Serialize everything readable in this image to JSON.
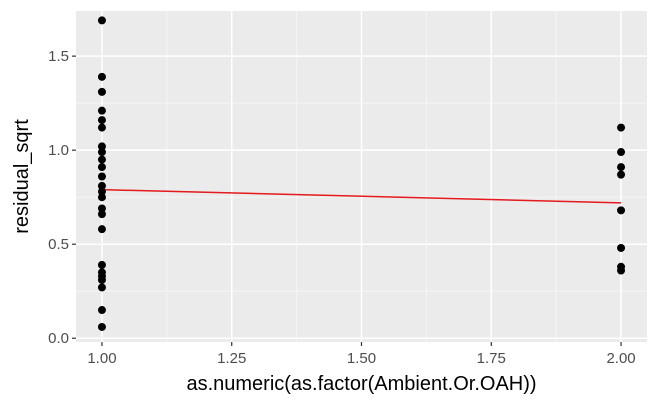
{
  "chart_data": {
    "type": "scatter",
    "title": "",
    "xlabel": "as.numeric(as.factor(Ambient.Or.OAH))",
    "ylabel": "residual_sqrt",
    "xlim": [
      0.95,
      2.05
    ],
    "ylim": [
      -0.02,
      1.74
    ],
    "grid": true,
    "x_ticks": [
      {
        "value": 1.0,
        "label": "1.00"
      },
      {
        "value": 1.25,
        "label": "1.25"
      },
      {
        "value": 1.5,
        "label": "1.50"
      },
      {
        "value": 1.75,
        "label": "1.75"
      },
      {
        "value": 2.0,
        "label": "2.00"
      }
    ],
    "y_ticks": [
      {
        "value": 0.0,
        "label": "0.0"
      },
      {
        "value": 0.5,
        "label": "0.5"
      },
      {
        "value": 1.0,
        "label": "1.0"
      },
      {
        "value": 1.5,
        "label": "1.5"
      }
    ],
    "points": [
      {
        "x": 1,
        "y": 1.69
      },
      {
        "x": 1,
        "y": 1.39
      },
      {
        "x": 1,
        "y": 1.31
      },
      {
        "x": 1,
        "y": 1.21
      },
      {
        "x": 1,
        "y": 1.16
      },
      {
        "x": 1,
        "y": 1.12
      },
      {
        "x": 1,
        "y": 1.02
      },
      {
        "x": 1,
        "y": 0.99
      },
      {
        "x": 1,
        "y": 0.95
      },
      {
        "x": 1,
        "y": 0.91
      },
      {
        "x": 1,
        "y": 0.86
      },
      {
        "x": 1,
        "y": 0.81
      },
      {
        "x": 1,
        "y": 0.78
      },
      {
        "x": 1,
        "y": 0.75
      },
      {
        "x": 1,
        "y": 0.69
      },
      {
        "x": 1,
        "y": 0.66
      },
      {
        "x": 1,
        "y": 0.58
      },
      {
        "x": 1,
        "y": 0.39
      },
      {
        "x": 1,
        "y": 0.35
      },
      {
        "x": 1,
        "y": 0.33
      },
      {
        "x": 1,
        "y": 0.31
      },
      {
        "x": 1,
        "y": 0.27
      },
      {
        "x": 1,
        "y": 0.15
      },
      {
        "x": 1,
        "y": 0.06
      },
      {
        "x": 2,
        "y": 1.12
      },
      {
        "x": 2,
        "y": 0.99
      },
      {
        "x": 2,
        "y": 0.91
      },
      {
        "x": 2,
        "y": 0.87
      },
      {
        "x": 2,
        "y": 0.68
      },
      {
        "x": 2,
        "y": 0.48
      },
      {
        "x": 2,
        "y": 0.38
      },
      {
        "x": 2,
        "y": 0.36
      }
    ],
    "trend_line": {
      "x": [
        1.0,
        2.0
      ],
      "y": [
        0.79,
        0.72
      ],
      "color": "#e41a1c"
    },
    "colors": {
      "panel_background": "#ebebeb",
      "grid_major": "#ffffff",
      "grid_minor": "#f5f5f5",
      "point": "#000000",
      "axis_text": "#4d4d4d",
      "axis_title": "#000000",
      "tick_mark": "#333333"
    }
  }
}
